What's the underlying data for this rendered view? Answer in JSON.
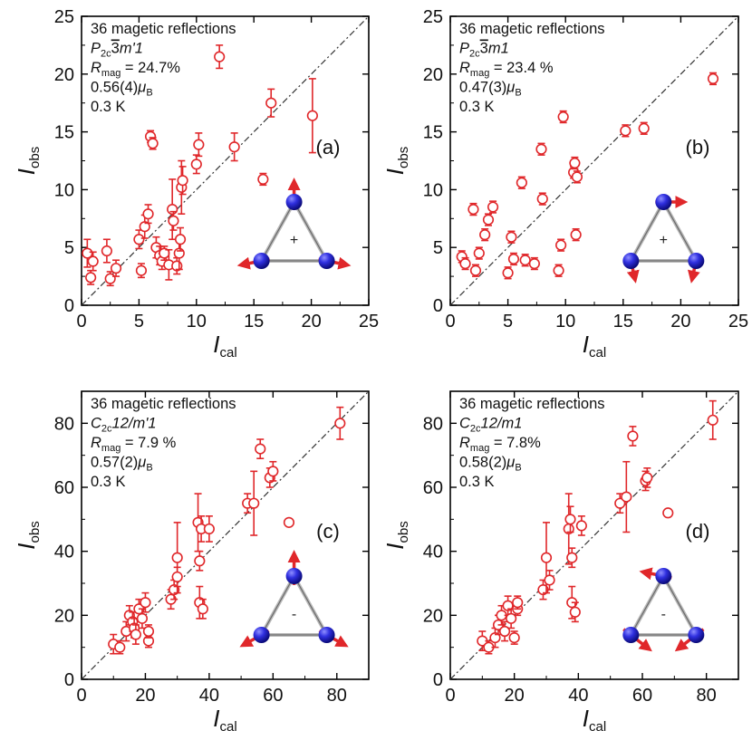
{
  "figure": {
    "description_axes_note": "Four panels comparing observed vs calculated magnetic intensities"
  },
  "chart_data": [
    {
      "type": "scatter",
      "panel_label": "(a)",
      "xlabel": "I",
      "xlabel_sub": "cal",
      "ylabel": "I",
      "ylabel_sub": "obs",
      "xlim": [
        0,
        25
      ],
      "ylim": [
        0,
        25
      ],
      "xticks": [
        0,
        5,
        10,
        15,
        20,
        25
      ],
      "yticks": [
        0,
        5,
        10,
        15,
        20,
        25
      ],
      "annotation": {
        "line1": "36 magetic reflections",
        "group_main": "P",
        "group_sub": "2c",
        "group_bar": "3",
        "group_rest": "m'1",
        "r_main": "R",
        "r_sub": "mag",
        "r_value": " = 24.7%",
        "moment_value": "0.56(4)",
        "moment_unit": "μ",
        "moment_sub": "B",
        "temperature": "0.3 K"
      },
      "inset_sign": "+",
      "series": [
        {
          "name": "Observed vs calculated",
          "color": "#e0272a",
          "x": [
            0.5,
            0.8,
            1.0,
            2.2,
            2.5,
            3.0,
            5.0,
            5.2,
            5.5,
            5.8,
            6.0,
            6.2,
            6.5,
            6.8,
            7.0,
            7.2,
            7.6,
            7.9,
            8.0,
            8.3,
            8.5,
            8.6,
            8.7,
            8.8,
            10.0,
            10.2,
            12.0,
            13.3,
            15.8,
            16.5,
            20.1
          ],
          "y": [
            4.5,
            2.4,
            3.8,
            4.7,
            2.3,
            3.2,
            5.7,
            3.0,
            6.8,
            7.9,
            14.6,
            14.0,
            5.0,
            4.3,
            3.8,
            4.5,
            3.5,
            8.3,
            7.3,
            3.4,
            4.5,
            5.7,
            10.2,
            10.8,
            12.2,
            13.9,
            21.5,
            13.7,
            10.9,
            17.5,
            16.4
          ],
          "err": [
            1.2,
            0.6,
            0.8,
            1.0,
            0.6,
            0.7,
            0.8,
            0.6,
            1.0,
            0.8,
            0.5,
            0.5,
            0.9,
            0.8,
            0.7,
            0.6,
            1.3,
            2.6,
            0.8,
            0.7,
            1.4,
            1.0,
            2.3,
            1.2,
            0.8,
            1.0,
            1.0,
            1.2,
            0.5,
            1.2,
            3.2
          ]
        }
      ],
      "reference_line": "y = x"
    },
    {
      "type": "scatter",
      "panel_label": "(b)",
      "xlabel": "I",
      "xlabel_sub": "cal",
      "ylabel": "I",
      "ylabel_sub": "obs",
      "xlim": [
        0,
        25
      ],
      "ylim": [
        0,
        25
      ],
      "xticks": [
        0,
        5,
        10,
        15,
        20,
        25
      ],
      "yticks": [
        0,
        5,
        10,
        15,
        20,
        25
      ],
      "annotation": {
        "line1": "36 magetic reflections",
        "group_main": "P",
        "group_sub": "2c",
        "group_bar": "3",
        "group_rest": "m1",
        "r_main": "R",
        "r_sub": "mag",
        "r_value": " = 23.4 %",
        "moment_value": "0.47(3)",
        "moment_unit": "μ",
        "moment_sub": "B",
        "temperature": "0.3 K"
      },
      "inset_sign": "+",
      "series": [
        {
          "name": "Observed vs calculated",
          "color": "#e0272a",
          "x": [
            1.0,
            1.3,
            2.0,
            2.2,
            2.5,
            3.0,
            3.3,
            3.7,
            5.0,
            5.3,
            5.5,
            6.2,
            6.5,
            7.3,
            7.9,
            8.0,
            9.4,
            9.6,
            9.8,
            10.7,
            10.8,
            10.9,
            11.0,
            15.2,
            16.8,
            22.8
          ],
          "y": [
            4.2,
            3.6,
            8.3,
            3.0,
            4.5,
            6.1,
            7.4,
            8.5,
            2.8,
            5.9,
            4.0,
            10.6,
            3.9,
            3.6,
            13.5,
            9.2,
            3.0,
            5.2,
            16.3,
            11.5,
            12.3,
            6.1,
            11.1,
            15.1,
            15.3,
            19.6
          ]
        }
      ],
      "reference_line": "y = x"
    },
    {
      "type": "scatter",
      "panel_label": "(c)",
      "xlabel": "I",
      "xlabel_sub": "cal",
      "ylabel": "I",
      "ylabel_sub": "obs",
      "xlim": [
        0,
        90
      ],
      "ylim": [
        0,
        90
      ],
      "xticks": [
        0,
        20,
        40,
        60,
        80
      ],
      "yticks": [
        0,
        20,
        40,
        60,
        80
      ],
      "annotation": {
        "line1": "36 magetic reflections",
        "group_main": "C",
        "group_sub": "2c",
        "group_bar": "",
        "group_rest": "12/m'1",
        "r_main": "R",
        "r_sub": "mag",
        "r_value": " = 7.9 %",
        "moment_value": "0.57(2)",
        "moment_unit": "μ",
        "moment_sub": "B",
        "temperature": "0.3 K"
      },
      "inset_sign": "-",
      "series": [
        {
          "name": "Observed vs calculated",
          "color": "#e0272a",
          "x": [
            10,
            12,
            14,
            15,
            16,
            16.5,
            17,
            18,
            19,
            20,
            21,
            21,
            28,
            29,
            30,
            30,
            36.5,
            37,
            37,
            37.5,
            38,
            40,
            52,
            54,
            56,
            59,
            60,
            65,
            81
          ],
          "y": [
            11,
            10,
            15,
            20,
            18,
            16,
            14,
            22,
            19,
            24,
            12,
            15,
            25,
            28,
            38,
            32,
            49,
            37,
            24,
            47,
            22,
            47,
            55,
            55,
            72,
            63,
            65,
            49,
            80
          ],
          "err": [
            3,
            2,
            3,
            3,
            3,
            3,
            3,
            3,
            3,
            3,
            2,
            2,
            3,
            3,
            11,
            3,
            9,
            3,
            5,
            4,
            3,
            4,
            3,
            10,
            3,
            3,
            3,
            0,
            5
          ]
        }
      ],
      "reference_line": "y = x"
    },
    {
      "type": "scatter",
      "panel_label": "(d)",
      "xlabel": "I",
      "xlabel_sub": "cal",
      "ylabel": "I",
      "ylabel_sub": "obs",
      "xlim": [
        0,
        90
      ],
      "ylim": [
        0,
        90
      ],
      "xticks": [
        0,
        20,
        40,
        60,
        80
      ],
      "yticks": [
        0,
        20,
        40,
        60,
        80
      ],
      "annotation": {
        "line1": "36 magetic reflections",
        "group_main": "C",
        "group_sub": "2c",
        "group_bar": "",
        "group_rest": "12/m1",
        "r_main": "R",
        "r_sub": "mag",
        "r_value": " = 7.8%",
        "moment_value": "0.58(2)",
        "moment_unit": "μ",
        "moment_sub": "B",
        "temperature": "0.3 K"
      },
      "inset_sign": "-",
      "series": [
        {
          "name": "Observed vs calculated",
          "color": "#e0272a",
          "x": [
            10,
            12,
            14,
            15,
            16,
            17,
            18,
            19,
            20,
            21,
            21,
            29,
            30,
            31,
            37,
            37.5,
            38,
            38,
            39,
            41,
            53,
            55,
            57,
            61,
            61.5,
            68,
            82
          ],
          "y": [
            12,
            10,
            13,
            17,
            20,
            15,
            23,
            19,
            13,
            22,
            24,
            28,
            38,
            31,
            47,
            50,
            38,
            24,
            21,
            48,
            55,
            57,
            76,
            62,
            63,
            52,
            81
          ],
          "err": [
            3,
            2,
            3,
            3,
            3,
            3,
            3,
            3,
            2,
            2,
            2,
            3,
            11,
            3,
            11,
            4,
            3,
            5,
            3,
            3,
            3,
            11,
            3,
            3,
            3,
            0,
            6
          ]
        }
      ],
      "reference_line": "y = x"
    }
  ]
}
